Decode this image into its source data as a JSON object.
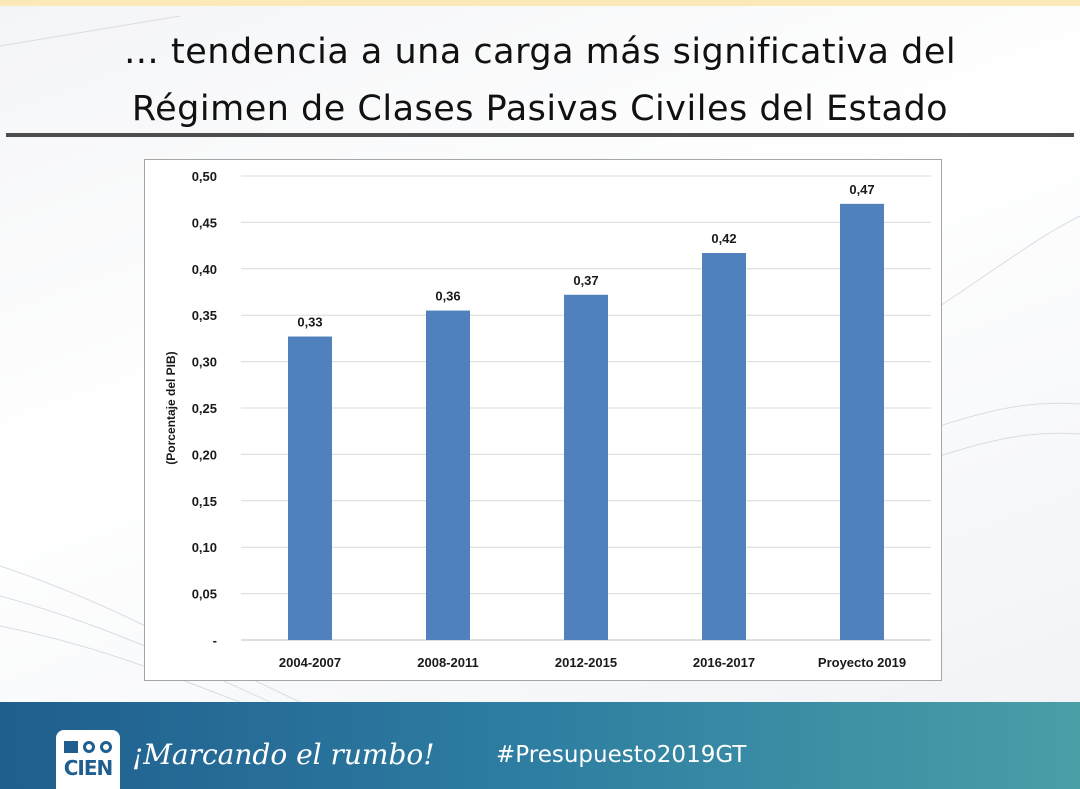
{
  "slide": {
    "title_line1": "… tendencia a una carga más significativa del",
    "title_line2": "Régimen de Clases Pasivas Civiles del Estado"
  },
  "footer": {
    "logo_text": "CIEN",
    "slogan": "¡Marcando el rumbo!",
    "hashtag": "#Presupuesto2019GT"
  },
  "chart_data": {
    "type": "bar",
    "categories": [
      "2004-2007",
      "2008-2011",
      "2012-2015",
      "2016-2017",
      "Proyecto 2019"
    ],
    "values": [
      0.327,
      0.355,
      0.372,
      0.417,
      0.47
    ],
    "data_labels": [
      "0,33",
      "0,36",
      "0,37",
      "0,42",
      "0,47"
    ],
    "title": "",
    "xlabel": "",
    "ylabel": "(Porcentaje del PIB)",
    "ylim": [
      0,
      0.5
    ],
    "yticks": [
      0,
      0.05,
      0.1,
      0.15,
      0.2,
      0.25,
      0.3,
      0.35,
      0.4,
      0.45,
      0.5
    ],
    "ytick_labels": [
      "-",
      "0,05",
      "0,10",
      "0,15",
      "0,20",
      "0,25",
      "0,30",
      "0,35",
      "0,40",
      "0,45",
      "0,50"
    ],
    "grid": true,
    "legend": "none",
    "bar_color": "#4f81bd"
  }
}
